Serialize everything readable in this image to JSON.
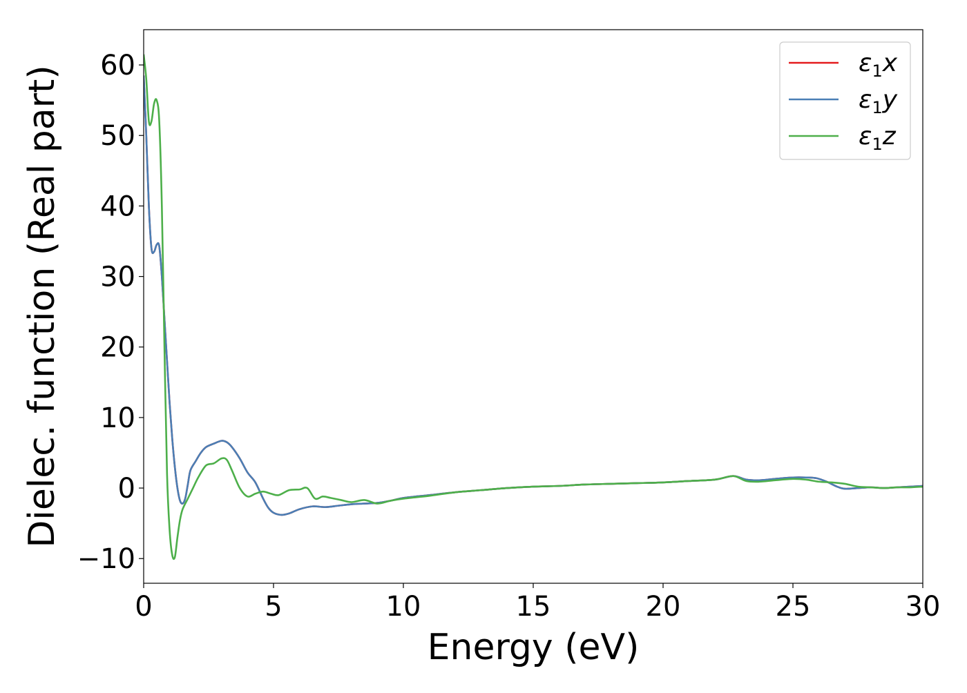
{
  "chart_data": {
    "type": "line",
    "title": "",
    "xlabel": "Energy (eV)",
    "ylabel": "Dielec. function (Real part)",
    "xlim": [
      0,
      30
    ],
    "ylim": [
      -13.5,
      65
    ],
    "xticks": [
      0,
      5,
      10,
      15,
      20,
      25,
      30
    ],
    "yticks": [
      -10,
      0,
      10,
      20,
      30,
      40,
      50,
      60
    ],
    "xtick_labels": [
      "0",
      "5",
      "10",
      "15",
      "20",
      "25",
      "30"
    ],
    "ytick_labels": [
      "−10",
      "0",
      "10",
      "20",
      "30",
      "40",
      "50",
      "60"
    ],
    "grid": false,
    "legend_position": "top-right",
    "series": [
      {
        "name": "ε₁x",
        "legend_main": "ε",
        "legend_sub": "1",
        "legend_tail": "x",
        "color": "#e41a1c",
        "x": [
          0,
          0.1,
          0.2,
          0.3,
          0.4,
          0.5,
          0.6,
          0.7,
          0.8,
          0.9,
          1.0,
          1.1,
          1.2,
          1.3,
          1.4,
          1.5,
          1.6,
          1.7,
          1.8,
          2.0,
          2.2,
          2.4,
          2.7,
          3.0,
          3.2,
          3.4,
          3.7,
          4.0,
          4.3,
          4.6,
          4.8,
          5.0,
          5.3,
          5.6,
          6.0,
          6.5,
          7.0,
          7.5,
          8.0,
          8.5,
          9.0,
          9.5,
          10,
          11,
          12,
          13,
          14,
          15,
          16,
          17,
          18,
          19,
          20,
          21,
          22,
          22.7,
          23.2,
          23.7,
          24.3,
          25,
          25.5,
          25.9,
          26.3,
          26.7,
          27.0,
          27.5,
          28.0,
          28.5,
          29,
          29.5,
          30
        ],
        "y": [
          58.5,
          50,
          40,
          34,
          33.5,
          34.5,
          34.3,
          30,
          24,
          18,
          12,
          7,
          3,
          0,
          -1.8,
          -2.2,
          -1.5,
          0.5,
          2.5,
          3.8,
          5.0,
          5.8,
          6.3,
          6.7,
          6.5,
          5.8,
          4.2,
          2.2,
          0.8,
          -1.5,
          -2.8,
          -3.5,
          -3.8,
          -3.6,
          -3.0,
          -2.6,
          -2.7,
          -2.5,
          -2.3,
          -2.2,
          -2.1,
          -1.8,
          -1.4,
          -1.0,
          -0.6,
          -0.3,
          0.0,
          0.2,
          0.3,
          0.5,
          0.6,
          0.7,
          0.8,
          1.0,
          1.2,
          1.7,
          1.2,
          1.1,
          1.3,
          1.5,
          1.5,
          1.4,
          0.9,
          0.2,
          -0.1,
          0.0,
          0.1,
          0.0,
          0.1,
          0.2,
          0.3
        ]
      },
      {
        "name": "ε₁y",
        "legend_main": "ε",
        "legend_sub": "1",
        "legend_tail": "y",
        "color": "#4a7fb5",
        "x": [
          0,
          0.1,
          0.2,
          0.3,
          0.4,
          0.5,
          0.6,
          0.7,
          0.8,
          0.9,
          1.0,
          1.1,
          1.2,
          1.3,
          1.4,
          1.5,
          1.6,
          1.7,
          1.8,
          2.0,
          2.2,
          2.4,
          2.7,
          3.0,
          3.2,
          3.4,
          3.7,
          4.0,
          4.3,
          4.6,
          4.8,
          5.0,
          5.3,
          5.6,
          6.0,
          6.5,
          7.0,
          7.5,
          8.0,
          8.5,
          9.0,
          9.5,
          10,
          11,
          12,
          13,
          14,
          15,
          16,
          17,
          18,
          19,
          20,
          21,
          22,
          22.7,
          23.2,
          23.7,
          24.3,
          25,
          25.5,
          25.9,
          26.3,
          26.7,
          27.0,
          27.5,
          28.0,
          28.5,
          29,
          29.5,
          30
        ],
        "y": [
          58.5,
          50,
          40,
          34,
          33.5,
          34.5,
          34.3,
          30,
          24,
          18,
          12,
          7,
          3,
          0,
          -1.8,
          -2.2,
          -1.5,
          0.5,
          2.5,
          3.8,
          5.0,
          5.8,
          6.3,
          6.7,
          6.5,
          5.8,
          4.2,
          2.2,
          0.8,
          -1.5,
          -2.8,
          -3.5,
          -3.8,
          -3.6,
          -3.0,
          -2.6,
          -2.7,
          -2.5,
          -2.3,
          -2.2,
          -2.1,
          -1.8,
          -1.4,
          -1.0,
          -0.6,
          -0.3,
          0.0,
          0.2,
          0.3,
          0.5,
          0.6,
          0.7,
          0.8,
          1.0,
          1.2,
          1.7,
          1.2,
          1.1,
          1.3,
          1.5,
          1.5,
          1.4,
          0.9,
          0.2,
          -0.1,
          0.0,
          0.1,
          0.0,
          0.1,
          0.2,
          0.3
        ]
      },
      {
        "name": "ε₁z",
        "legend_main": "ε",
        "legend_sub": "1",
        "legend_tail": "z",
        "color": "#4daf4a",
        "x": [
          0,
          0.1,
          0.2,
          0.3,
          0.4,
          0.5,
          0.6,
          0.7,
          0.8,
          0.9,
          1.0,
          1.1,
          1.2,
          1.3,
          1.4,
          1.5,
          1.7,
          1.9,
          2.1,
          2.4,
          2.7,
          3.0,
          3.2,
          3.4,
          3.7,
          4.0,
          4.3,
          4.6,
          4.9,
          5.2,
          5.6,
          6.0,
          6.3,
          6.6,
          6.9,
          7.2,
          7.6,
          8.0,
          8.5,
          9.0,
          9.5,
          10,
          11,
          12,
          13,
          14,
          15,
          16,
          17,
          18,
          19,
          20,
          21,
          22,
          22.7,
          23.2,
          23.7,
          24.3,
          25,
          25.5,
          26,
          26.5,
          27.0,
          27.5,
          28.0,
          28.5,
          29,
          29.5,
          30
        ],
        "y": [
          61.5,
          58,
          52,
          52,
          54.5,
          55,
          52,
          40,
          20,
          2,
          -6,
          -9.5,
          -9.8,
          -7,
          -4.5,
          -3,
          -1.5,
          0,
          1.5,
          3.2,
          3.5,
          4.2,
          4.0,
          2.5,
          0,
          -1.2,
          -0.8,
          -0.5,
          -0.8,
          -1.0,
          -0.3,
          -0.2,
          0.0,
          -1.5,
          -1.2,
          -1.4,
          -1.7,
          -2.0,
          -1.7,
          -2.2,
          -1.8,
          -1.5,
          -1.1,
          -0.6,
          -0.3,
          0.0,
          0.2,
          0.3,
          0.5,
          0.6,
          0.7,
          0.8,
          1.0,
          1.2,
          1.7,
          1.0,
          0.9,
          1.1,
          1.3,
          1.2,
          0.9,
          0.8,
          0.6,
          0.2,
          0.1,
          0.0,
          0.1,
          0.1,
          0.2
        ]
      }
    ]
  }
}
